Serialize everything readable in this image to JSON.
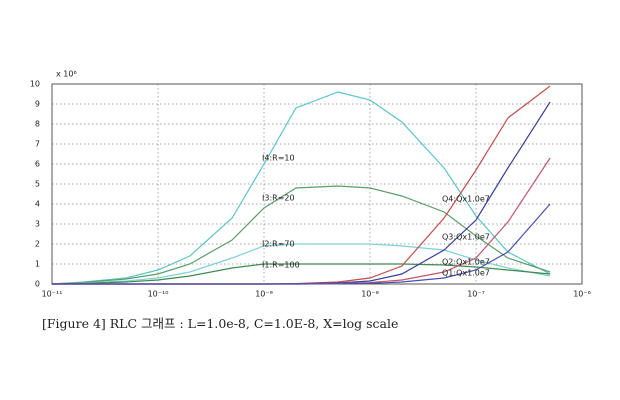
{
  "chart_data": {
    "type": "line",
    "caption": "[Figure 4] RLC 그래프 : L=1.0e-8, C=1.0E-8, X=log scale",
    "y_multiplier": "x 10⁶",
    "x_log": true,
    "grid": true,
    "x": [
      1e-11,
      2e-11,
      5e-11,
      1e-10,
      2e-10,
      5e-10,
      1e-09,
      2e-09,
      5e-09,
      1e-08,
      2e-08,
      5e-08,
      1e-07,
      2e-07,
      5e-07
    ],
    "xlim": [
      1e-11,
      1e-06
    ],
    "xticks": [
      {
        "value": 1e-11,
        "label": "10⁻¹¹"
      },
      {
        "value": 1e-10,
        "label": "10⁻¹⁰"
      },
      {
        "value": 1e-09,
        "label": "10⁻⁹"
      },
      {
        "value": 1e-08,
        "label": "10⁻⁸"
      },
      {
        "value": 1e-07,
        "label": "10⁻⁷"
      },
      {
        "value": 1e-06,
        "label": "10⁻⁶"
      }
    ],
    "ylim": [
      0,
      10
    ],
    "yticks": [
      0,
      1,
      2,
      3,
      4,
      5,
      6,
      7,
      8,
      9,
      10
    ],
    "series": [
      {
        "name": "I4:R=10",
        "color": "#5cc4c8",
        "values": [
          0,
          0.1,
          0.3,
          0.7,
          1.4,
          3.3,
          6.0,
          8.8,
          9.6,
          9.2,
          8.1,
          5.8,
          3.4,
          1.6,
          0.5
        ]
      },
      {
        "name": "I3:R=20",
        "color": "#5a9e6a",
        "values": [
          0,
          0.08,
          0.25,
          0.5,
          1.0,
          2.2,
          3.8,
          4.8,
          4.9,
          4.8,
          4.4,
          3.6,
          2.4,
          1.3,
          0.6
        ]
      },
      {
        "name": "I2:R=70",
        "color": "#7fd0d6",
        "values": [
          0,
          0.05,
          0.15,
          0.3,
          0.6,
          1.3,
          1.9,
          2.0,
          2.0,
          2.0,
          1.9,
          1.7,
          1.2,
          0.8,
          0.4
        ]
      },
      {
        "name": "I1:R=100",
        "color": "#3f8a4f",
        "values": [
          0,
          0.03,
          0.1,
          0.2,
          0.4,
          0.8,
          1.0,
          1.0,
          1.0,
          1.0,
          1.0,
          0.95,
          0.85,
          0.7,
          0.5
        ]
      },
      {
        "name": "Q4:Qx1.0e7",
        "color": "#c0504d",
        "values": [
          0,
          0,
          0,
          0,
          0,
          0,
          0,
          0.02,
          0.1,
          0.3,
          0.9,
          3.3,
          5.7,
          8.3,
          9.9
        ]
      },
      {
        "name": "Q3:Qx1.0e7",
        "color": "#3a3f9a",
        "values": [
          0,
          0,
          0,
          0,
          0,
          0,
          0,
          0.01,
          0.05,
          0.15,
          0.5,
          1.7,
          3.2,
          5.8,
          9.1
        ]
      },
      {
        "name": "Q2:Qx1.0e7",
        "color": "#c05570",
        "values": [
          0,
          0,
          0,
          0,
          0,
          0,
          0,
          0,
          0.02,
          0.07,
          0.2,
          0.6,
          1.3,
          3.1,
          6.3
        ]
      },
      {
        "name": "Q1:Qx1.0e7",
        "color": "#4a4fb0",
        "values": [
          0,
          0,
          0,
          0,
          0,
          0,
          0,
          0,
          0.01,
          0.03,
          0.1,
          0.3,
          0.7,
          1.6,
          4.0
        ]
      }
    ]
  }
}
